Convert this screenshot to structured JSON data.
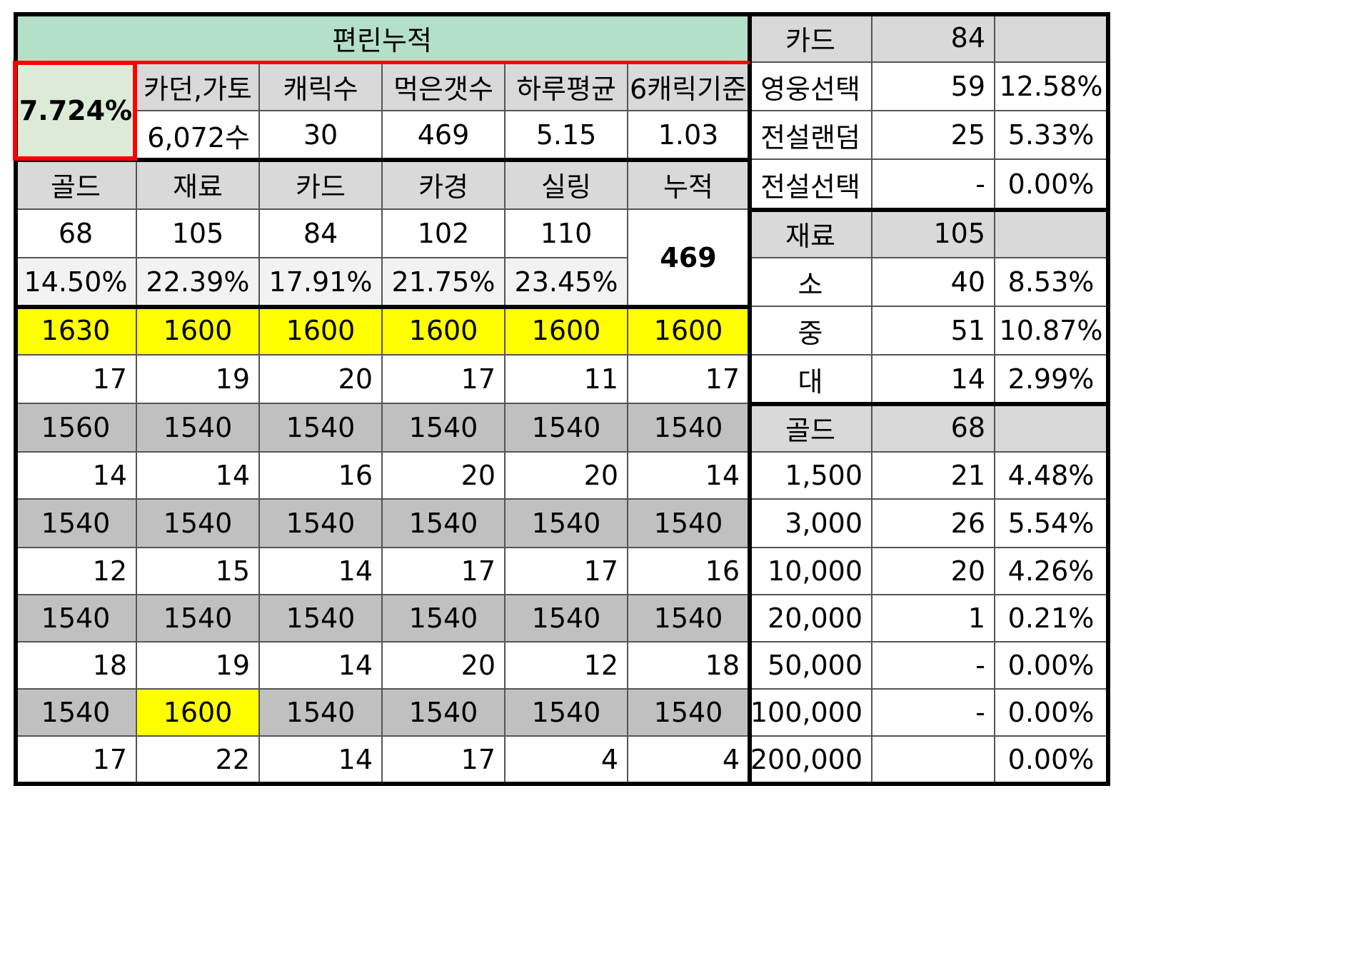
{
  "left": {
    "title": "편린누적",
    "rate": "7.724%",
    "headers": [
      "카던,가토",
      "캐릭수",
      "먹은갯수",
      "하루평균",
      "6캐릭기준"
    ],
    "values": [
      "6,072수",
      "30",
      "469",
      "5.15",
      "1.03"
    ],
    "cat_headers": [
      "골드",
      "재료",
      "카드",
      "카경",
      "실링",
      "누적"
    ],
    "cat_counts": [
      "68",
      "105",
      "84",
      "102",
      "110"
    ],
    "cat_pcts": [
      "14.50%",
      "22.39%",
      "17.91%",
      "21.75%",
      "23.45%"
    ],
    "total": "469",
    "grid": [
      [
        "1630",
        "1600",
        "1600",
        "1600",
        "1600",
        "1600"
      ],
      [
        "17",
        "19",
        "20",
        "17",
        "11",
        "17"
      ],
      [
        "1560",
        "1540",
        "1540",
        "1540",
        "1540",
        "1540"
      ],
      [
        "14",
        "14",
        "16",
        "20",
        "20",
        "14"
      ],
      [
        "1540",
        "1540",
        "1540",
        "1540",
        "1540",
        "1540"
      ],
      [
        "12",
        "15",
        "14",
        "17",
        "17",
        "16"
      ],
      [
        "1540",
        "1540",
        "1540",
        "1540",
        "1540",
        "1540"
      ],
      [
        "18",
        "19",
        "14",
        "20",
        "12",
        "18"
      ],
      [
        "1540",
        "1600",
        "1540",
        "1540",
        "1540",
        "1540"
      ],
      [
        "17",
        "22",
        "14",
        "17",
        "4",
        "4"
      ]
    ]
  },
  "right": {
    "card": {
      "label": "카드",
      "count": "84",
      "rows": [
        [
          "영웅선택",
          "59",
          "12.58%"
        ],
        [
          "전설랜덤",
          "25",
          "5.33%"
        ],
        [
          "전설선택",
          "-",
          "0.00%"
        ]
      ]
    },
    "material": {
      "label": "재료",
      "count": "105",
      "rows": [
        [
          "소",
          "40",
          "8.53%"
        ],
        [
          "중",
          "51",
          "10.87%"
        ],
        [
          "대",
          "14",
          "2.99%"
        ]
      ]
    },
    "gold": {
      "label": "골드",
      "count": "68",
      "rows": [
        [
          "1,500",
          "21",
          "4.48%"
        ],
        [
          "3,000",
          "26",
          "5.54%"
        ],
        [
          "10,000",
          "20",
          "4.26%"
        ],
        [
          "20,000",
          "1",
          "0.21%"
        ],
        [
          "50,000",
          "-",
          "0.00%"
        ],
        [
          "100,000",
          "-",
          "0.00%"
        ],
        [
          "200,000",
          "",
          "0.00%"
        ]
      ]
    }
  },
  "colors": {
    "title_bg": "#b4dfc8",
    "rate_bg": "#dcebd8",
    "header_gray": "#d9d9d9",
    "grid_gray": "#c0c0c0",
    "highlight": "#ffff00",
    "red_outline": "#ff0000"
  }
}
